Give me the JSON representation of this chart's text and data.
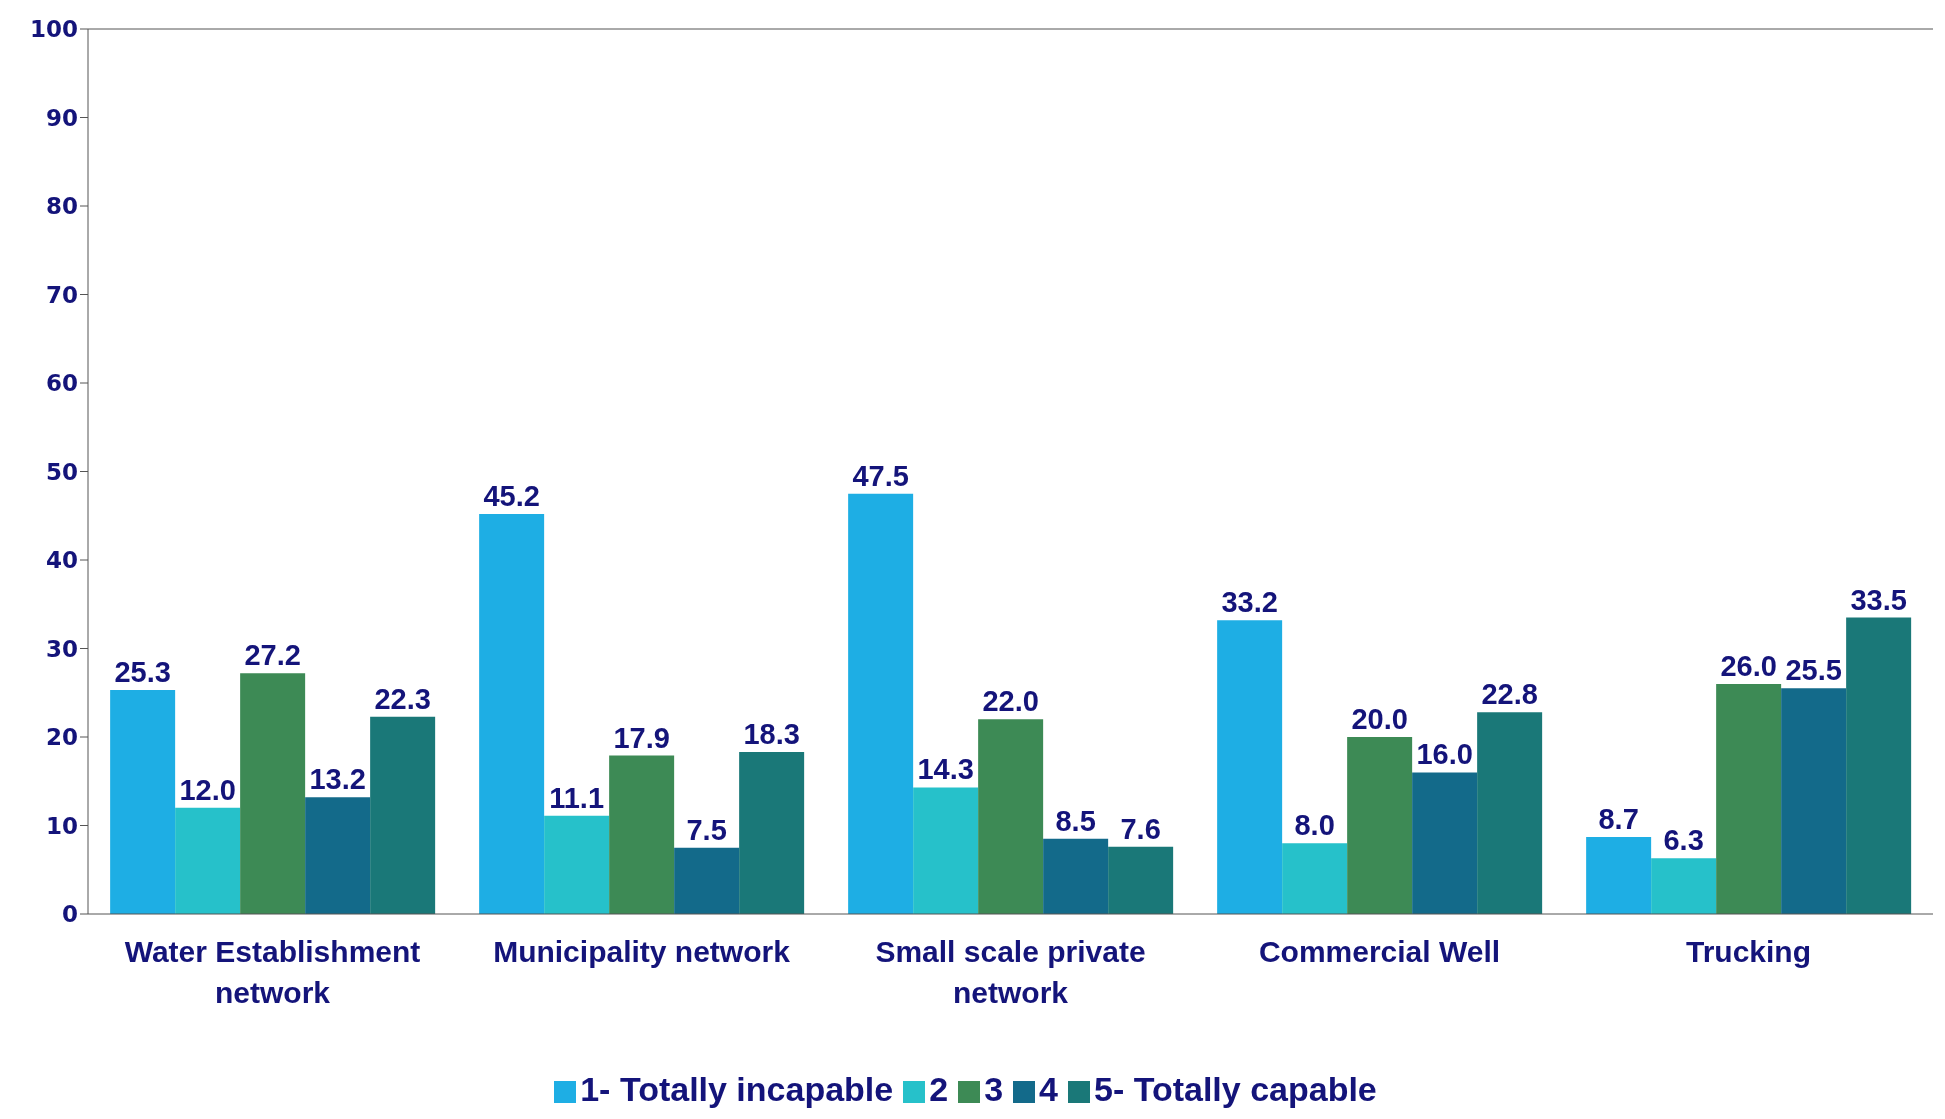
{
  "chart_data": {
    "type": "bar",
    "categories": [
      "Water Establishment network",
      "Municipality network",
      "Small scale private network",
      "Commercial Well",
      "Trucking"
    ],
    "series": [
      {
        "name": "1- Totally incapable",
        "color": "#1eaee4",
        "values": [
          25.3,
          45.2,
          47.5,
          33.2,
          8.7
        ],
        "value_labels": [
          "25.3",
          "45.2",
          "47.5",
          "33.2",
          "8.7"
        ]
      },
      {
        "name": "2",
        "color": "#26c1ca",
        "values": [
          12.0,
          11.1,
          14.3,
          8.0,
          6.3
        ],
        "value_labels": [
          "12.0",
          "11.1",
          "14.3",
          "8.0",
          "6.3"
        ]
      },
      {
        "name": "3",
        "color": "#3d8a55",
        "values": [
          27.2,
          17.9,
          22.0,
          20.0,
          26.0
        ],
        "value_labels": [
          "27.2",
          "17.9",
          "22.0",
          "20.0",
          "26.0"
        ]
      },
      {
        "name": "4",
        "color": "#136a8a",
        "values": [
          13.2,
          7.5,
          8.5,
          16.0,
          25.5
        ],
        "value_labels": [
          "13.2",
          "7.5",
          "8.5",
          "16.0",
          "25.5"
        ]
      },
      {
        "name": "5- Totally capable",
        "color": "#1a7878",
        "values": [
          22.3,
          18.3,
          7.6,
          22.8,
          33.5
        ],
        "value_labels": [
          "22.3",
          "18.3",
          "7.6",
          "22.8",
          "33.5"
        ]
      }
    ],
    "ylim": [
      0,
      100
    ],
    "yticks": [
      0,
      10,
      20,
      30,
      40,
      50,
      60,
      70,
      80,
      90,
      100
    ],
    "grid": false,
    "legend": "bottom"
  }
}
